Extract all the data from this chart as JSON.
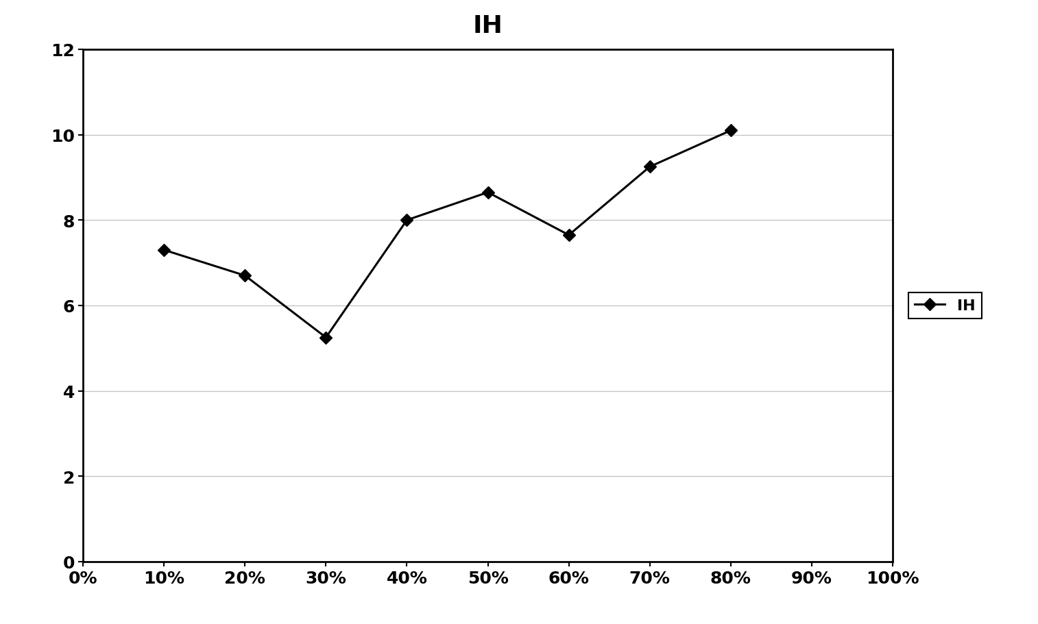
{
  "title": "IH",
  "x_values": [
    0.1,
    0.2,
    0.3,
    0.4,
    0.5,
    0.6,
    0.7,
    0.8
  ],
  "y_values": [
    7.3,
    6.7,
    5.25,
    8.0,
    8.65,
    7.65,
    9.25,
    10.1
  ],
  "x_ticks": [
    0.0,
    0.1,
    0.2,
    0.3,
    0.4,
    0.5,
    0.6,
    0.7,
    0.8,
    0.9,
    1.0
  ],
  "x_tick_labels": [
    "0%",
    "10%",
    "20%",
    "30%",
    "40%",
    "50%",
    "60%",
    "70%",
    "80%",
    "90%",
    "100%"
  ],
  "ylim": [
    0,
    12
  ],
  "y_ticks": [
    0,
    2,
    4,
    6,
    8,
    10,
    12
  ],
  "line_color": "#000000",
  "marker": "D",
  "marker_size": 9,
  "marker_face_color": "#000000",
  "line_width": 2.2,
  "legend_label": "IH",
  "title_fontsize": 26,
  "tick_fontsize": 18,
  "legend_fontsize": 16,
  "background_color": "#ffffff",
  "grid_color": "#c0c0c0",
  "grid_linewidth": 0.9,
  "spine_linewidth": 2.0
}
